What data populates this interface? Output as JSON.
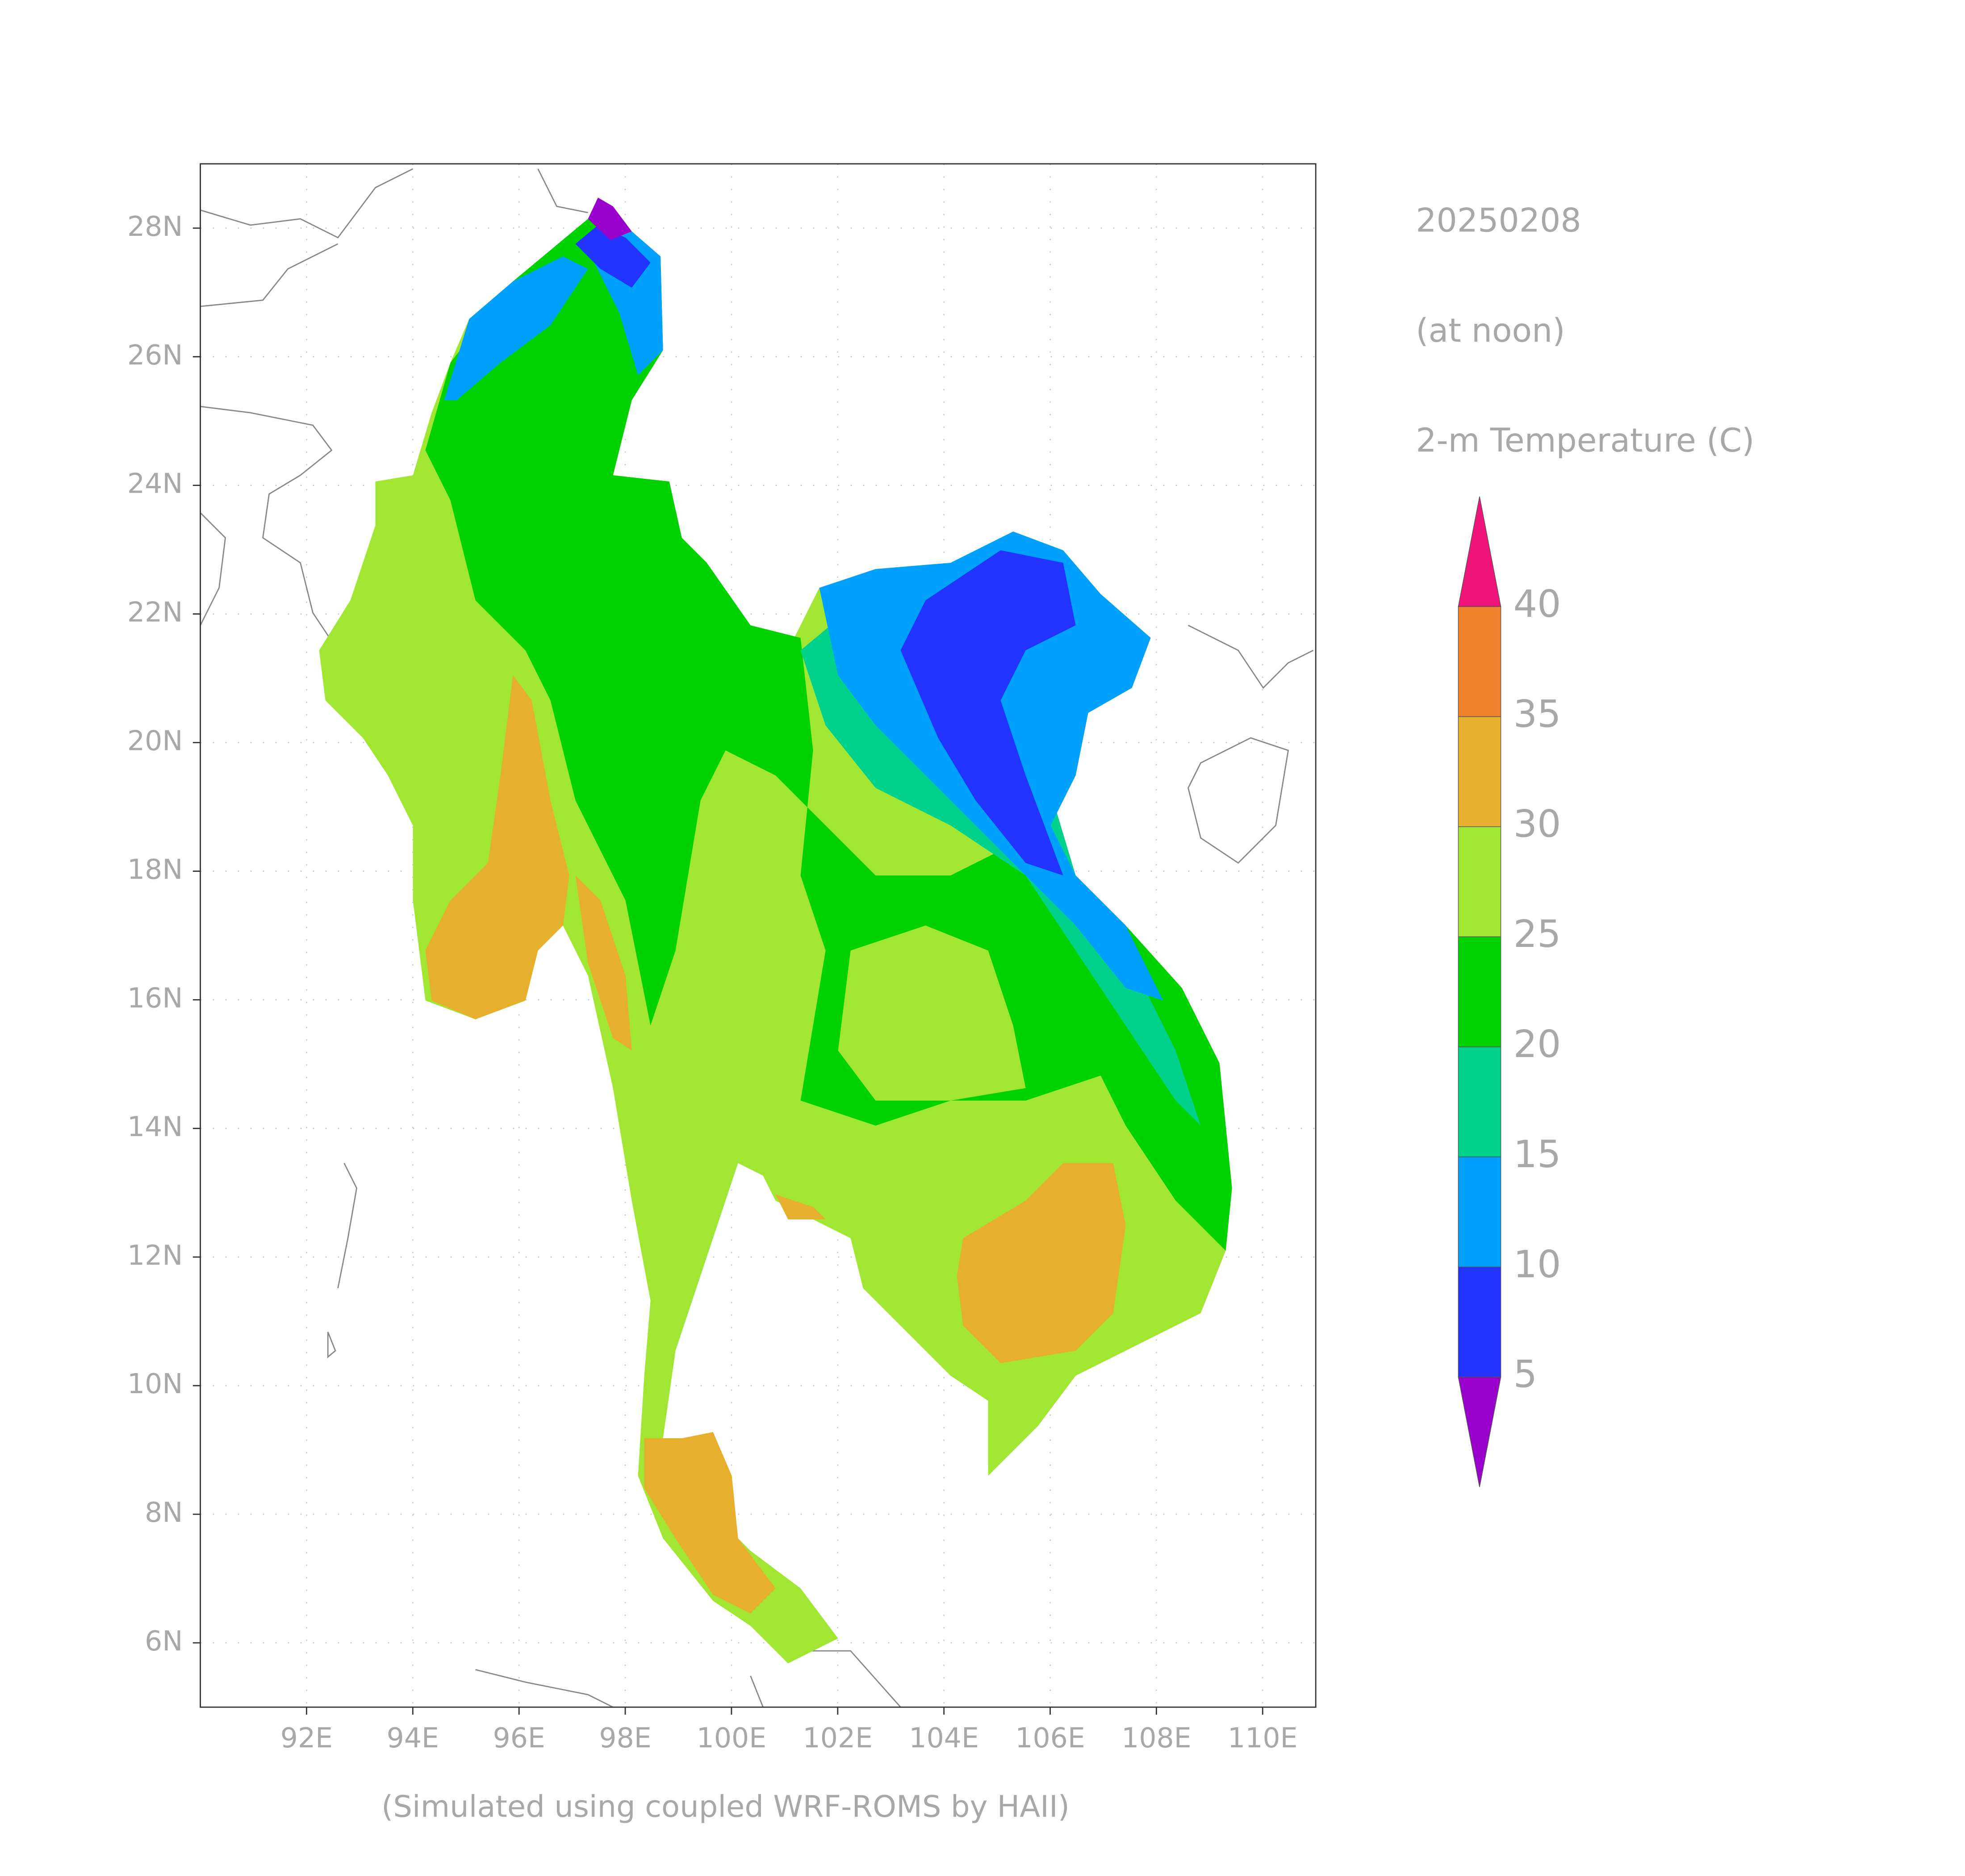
{
  "title": "20250208",
  "subtitle": "(at noon)",
  "variable": "2-m Temperature (C)",
  "footer": "(Simulated using coupled WRF-ROMS by HAII)",
  "map": {
    "xlim": [
      90,
      111
    ],
    "ylim": [
      5,
      29
    ],
    "xticks": [
      {
        "value": 92,
        "label": "92E"
      },
      {
        "value": 94,
        "label": "94E"
      },
      {
        "value": 96,
        "label": "96E"
      },
      {
        "value": 98,
        "label": "98E"
      },
      {
        "value": 100,
        "label": "100E"
      },
      {
        "value": 102,
        "label": "102E"
      },
      {
        "value": 104,
        "label": "104E"
      },
      {
        "value": 106,
        "label": "106E"
      },
      {
        "value": 108,
        "label": "108E"
      },
      {
        "value": 110,
        "label": "110E"
      }
    ],
    "yticks": [
      {
        "value": 6,
        "label": "6N"
      },
      {
        "value": 8,
        "label": "8N"
      },
      {
        "value": 10,
        "label": "10N"
      },
      {
        "value": 12,
        "label": "12N"
      },
      {
        "value": 14,
        "label": "14N"
      },
      {
        "value": 16,
        "label": "16N"
      },
      {
        "value": 18,
        "label": "18N"
      },
      {
        "value": 20,
        "label": "20N"
      },
      {
        "value": 22,
        "label": "22N"
      },
      {
        "value": 24,
        "label": "24N"
      },
      {
        "value": 26,
        "label": "26N"
      },
      {
        "value": 28,
        "label": "28N"
      }
    ]
  },
  "colorbar": {
    "levels": [
      5,
      10,
      15,
      20,
      25,
      30,
      35,
      40
    ],
    "colors": [
      "#9900cc",
      "#2233ff",
      "#00a0ff",
      "#00d28c",
      "#00d200",
      "#a0e632",
      "#e6af2d",
      "#f0822d",
      "#f0147a"
    ]
  }
}
